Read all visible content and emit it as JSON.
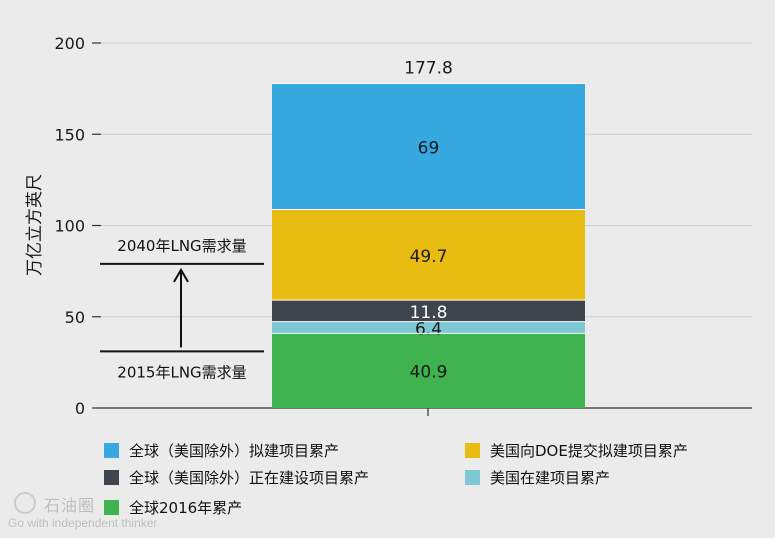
{
  "chart_data": {
    "type": "bar",
    "stacked": true,
    "ylabel": "万亿立方英尺",
    "ylim": [
      0,
      200
    ],
    "yticks": [
      0,
      50,
      100,
      150,
      200
    ],
    "categories": [
      ""
    ],
    "total_label": "177.8",
    "grid": true,
    "legend_position": "bottom",
    "series": [
      {
        "name": "全球2016年累产",
        "values": [
          40.9
        ],
        "label": "40.9",
        "color": "#3fb34f"
      },
      {
        "name": "美国在建项目累产",
        "values": [
          6.4
        ],
        "label": "6.4",
        "color": "#7ec8d6"
      },
      {
        "name": "全球（美国除外）正在建设项目累产",
        "values": [
          11.8
        ],
        "label": "11.8",
        "color": "#3e454c"
      },
      {
        "name": "美国向DOE提交拟建项目累产",
        "values": [
          49.7
        ],
        "label": "49.7",
        "color": "#e8bc11"
      },
      {
        "name": "全球（美国除外）拟建项目累产",
        "values": [
          69
        ],
        "label": "69",
        "color": "#36a9e1"
      }
    ],
    "annotations": [
      {
        "text": "2040年LNG需求量",
        "y": 79
      },
      {
        "text": "2015年LNG需求量",
        "y": 31
      }
    ]
  },
  "legend": [
    {
      "label": "全球（美国除外）拟建项目累产",
      "color": "#36a9e1"
    },
    {
      "label": "美国向DOE提交拟建项目累产",
      "color": "#e8bc11"
    },
    {
      "label": "全球（美国除外）正在建设项目累产",
      "color": "#3e454c"
    },
    {
      "label": "美国在建项目累产",
      "color": "#7ec8d6"
    },
    {
      "label": "全球2016年累产",
      "color": "#3fb34f"
    }
  ],
  "watermark": {
    "name": "石油圈",
    "slogan": "Go with independent thinker"
  }
}
